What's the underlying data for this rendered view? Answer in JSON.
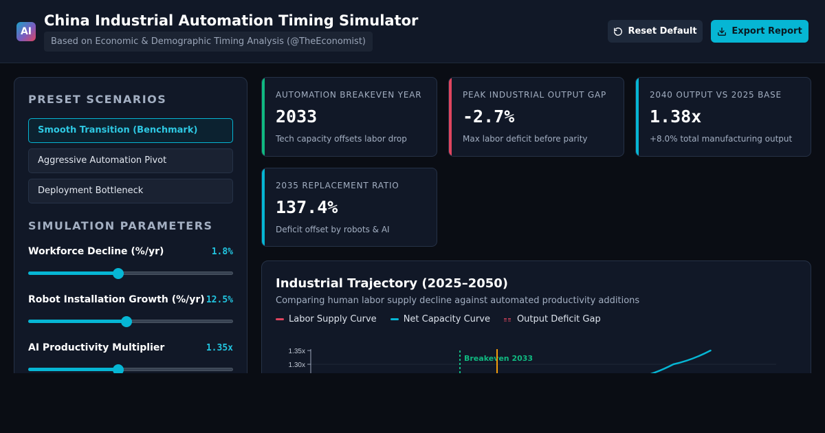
{
  "header": {
    "logo_text": "AI",
    "title": "China Industrial Automation Timing Simulator",
    "subtitle": "Based on Economic & Demographic Timing Analysis (@TheEconomist)",
    "reset_label": "Reset Default",
    "export_label": "Export Report"
  },
  "sidebar": {
    "presets_title": "PRESET SCENARIOS",
    "presets": [
      {
        "label": "Smooth Transition (Benchmark)",
        "active": true
      },
      {
        "label": "Aggressive Automation Pivot",
        "active": false
      },
      {
        "label": "Deployment Bottleneck",
        "active": false
      }
    ],
    "params_title": "SIMULATION PARAMETERS",
    "params": [
      {
        "label": "Workforce Decline (%/yr)",
        "value": "1.8%",
        "level": 0.44
      },
      {
        "label": "Robot Installation Growth (%/yr)",
        "value": "12.5%",
        "level": 0.48
      },
      {
        "label": "AI Productivity Multiplier",
        "value": "1.35x",
        "level": 0.44
      }
    ]
  },
  "cards": [
    {
      "label": "AUTOMATION BREAKEVEN YEAR",
      "value": "2033",
      "sub": "Tech capacity offsets labor drop",
      "accent": "#10b981"
    },
    {
      "label": "PEAK INDUSTRIAL OUTPUT GAP",
      "value": "-2.7%",
      "sub": "Max labor deficit before parity",
      "accent": "#e0455f"
    },
    {
      "label": "2040 OUTPUT VS 2025 BASE",
      "value": "1.38x",
      "sub": "+8.0% total manufacturing output",
      "accent": "#06b6d4"
    },
    {
      "label": "2035 REPLACEMENT RATIO",
      "value": "137.4%",
      "sub": "Deficit offset by robots & AI",
      "accent": "#06b6d4"
    }
  ],
  "chart": {
    "title": "Industrial Trajectory (2025–2050)",
    "subtitle": "Comparing human labor supply decline against automated productivity additions",
    "legend": [
      {
        "label": "Labor Supply Curve",
        "color": "#e0455f",
        "dashed": false
      },
      {
        "label": "Net Capacity Curve",
        "color": "#06b6d4",
        "dashed": false
      },
      {
        "label": "Output Deficit Gap",
        "color": "#e0455f",
        "dashed": true
      }
    ],
    "breakeven_label": "Breakeven 2033"
  },
  "chart_data": {
    "type": "line",
    "title": "Industrial Trajectory (2025–2050)",
    "y_ticks": [
      "1.35x",
      "1.30x"
    ],
    "ylim": [
      1.25,
      1.35
    ],
    "series": [
      {
        "name": "Net Capacity Curve",
        "color": "#06b6d4",
        "values": [
          [
            2042.5,
            1.25
          ],
          [
            2044.5,
            1.3
          ],
          [
            2046.5,
            1.35
          ]
        ]
      }
    ],
    "annotations": [
      {
        "label": "Breakeven 2033",
        "x": 2033,
        "color": "#10b981"
      }
    ],
    "marker_line": {
      "x": 2035,
      "color": "#f59e0b"
    }
  }
}
